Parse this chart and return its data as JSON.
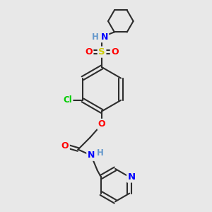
{
  "bg_color": "#e8e8e8",
  "bond_color": "#2d2d2d",
  "atom_colors": {
    "N": "#0000ff",
    "O": "#ff0000",
    "S": "#cccc00",
    "Cl": "#00cc00",
    "H": "#6699cc",
    "C": "#2d2d2d"
  },
  "figsize": [
    3.0,
    3.0
  ],
  "dpi": 100
}
